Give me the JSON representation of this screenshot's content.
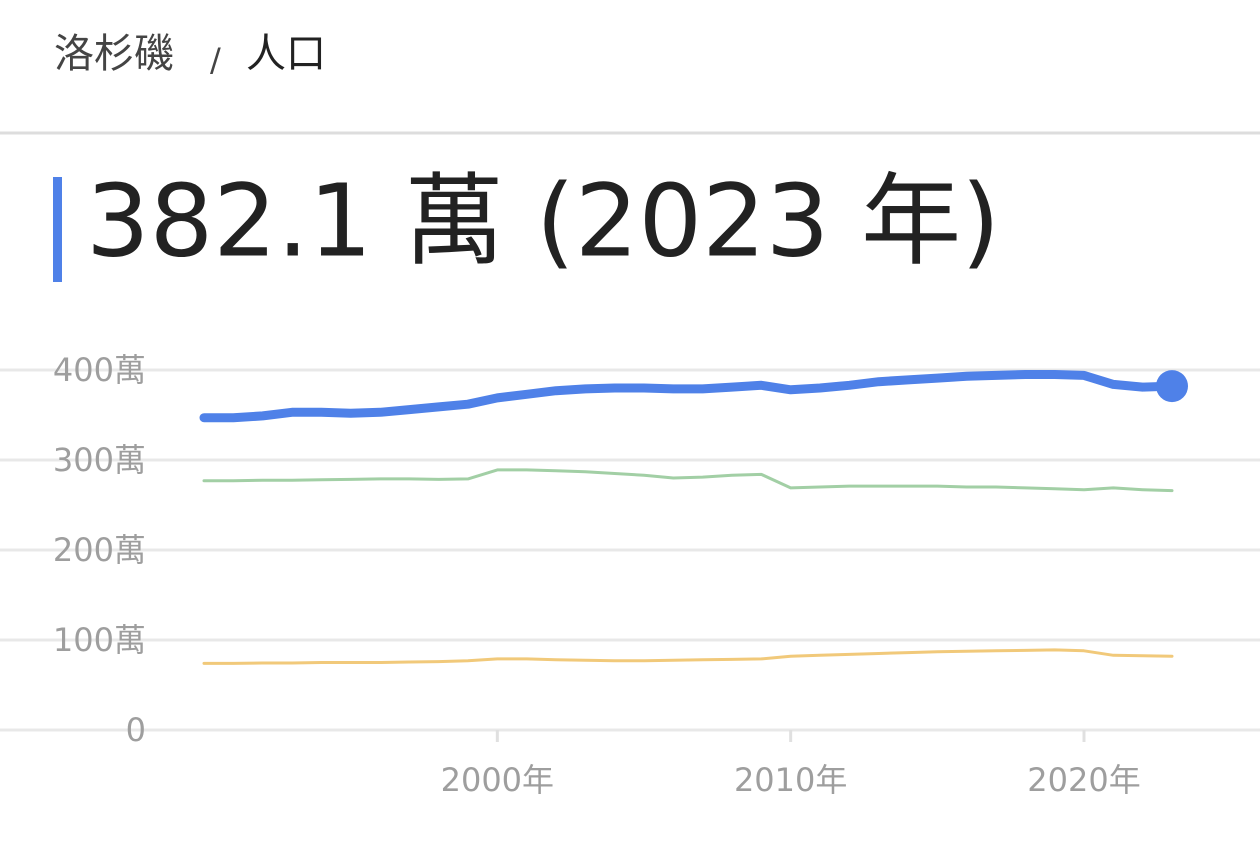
{
  "breadcrumb": {
    "place": "洛杉磯",
    "separator": "/",
    "topic": "人口"
  },
  "headline": "382.1 萬 (2023 年)",
  "chart_data": {
    "type": "line",
    "x": [
      1990,
      1991,
      1992,
      1993,
      1994,
      1995,
      1996,
      1997,
      1998,
      1999,
      2000,
      2001,
      2002,
      2003,
      2004,
      2005,
      2006,
      2007,
      2008,
      2009,
      2010,
      2011,
      2012,
      2013,
      2014,
      2015,
      2016,
      2017,
      2018,
      2019,
      2020,
      2021,
      2022,
      2023
    ],
    "series": [
      {
        "color": "#4f81e8",
        "values": [
          3470000,
          3470000,
          3490000,
          3530000,
          3530000,
          3520000,
          3530000,
          3560000,
          3590000,
          3620000,
          3690000,
          3730000,
          3770000,
          3790000,
          3800000,
          3800000,
          3790000,
          3790000,
          3810000,
          3830000,
          3780000,
          3800000,
          3830000,
          3870000,
          3890000,
          3910000,
          3930000,
          3940000,
          3950000,
          3950000,
          3940000,
          3840000,
          3810000,
          3821000
        ]
      },
      {
        "color": "#a2cfa5",
        "values": [
          2770000,
          2770000,
          2775000,
          2775000,
          2780000,
          2785000,
          2790000,
          2790000,
          2785000,
          2790000,
          2890000,
          2890000,
          2880000,
          2870000,
          2850000,
          2830000,
          2800000,
          2810000,
          2830000,
          2840000,
          2690000,
          2700000,
          2710000,
          2710000,
          2710000,
          2710000,
          2700000,
          2700000,
          2690000,
          2680000,
          2670000,
          2690000,
          2670000,
          2660000
        ]
      },
      {
        "color": "#f1c97a",
        "values": [
          740000,
          740000,
          745000,
          745000,
          750000,
          750000,
          750000,
          755000,
          760000,
          770000,
          790000,
          790000,
          780000,
          775000,
          770000,
          770000,
          775000,
          780000,
          785000,
          790000,
          820000,
          830000,
          840000,
          850000,
          860000,
          870000,
          875000,
          880000,
          885000,
          890000,
          880000,
          830000,
          825000,
          820000
        ]
      }
    ],
    "xlim": [
      1988.5,
      2026
    ],
    "xticks": [
      {
        "value": 2000,
        "label": "2000年"
      },
      {
        "value": 2010,
        "label": "2010年"
      },
      {
        "value": 2020,
        "label": "2020年"
      }
    ],
    "ylim": [
      0,
      4000000
    ],
    "yticks": [
      0,
      {
        "value": 1000000,
        "label": "100萬"
      },
      {
        "value": 2000000,
        "label": "200萬"
      },
      {
        "value": 3000000,
        "label": "300萬"
      },
      {
        "value": 4000000,
        "label": "400萬"
      }
    ],
    "grid": true
  }
}
